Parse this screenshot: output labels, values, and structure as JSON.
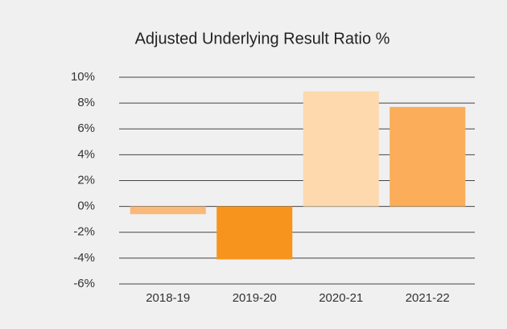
{
  "chart_data": {
    "type": "bar",
    "title": "Adjusted Underlying Result Ratio %",
    "categories": [
      "2018-19",
      "2019-20",
      "2020-21",
      "2021-22"
    ],
    "values": [
      -0.6,
      -4.1,
      8.9,
      7.7
    ],
    "colors": [
      "#f9b97a",
      "#f7941d",
      "#fdd9ad",
      "#fbad59"
    ],
    "ylim": [
      -6,
      10
    ],
    "yticks": [
      {
        "value": -6,
        "label": "-6%"
      },
      {
        "value": -4,
        "label": "-4%"
      },
      {
        "value": -2,
        "label": "-2%"
      },
      {
        "value": 0,
        "label": "0%"
      },
      {
        "value": 2,
        "label": "2%"
      },
      {
        "value": 4,
        "label": "4%"
      },
      {
        "value": 6,
        "label": "6%"
      },
      {
        "value": 8,
        "label": "8%"
      },
      {
        "value": 10,
        "label": "10%"
      }
    ],
    "grid": true
  }
}
